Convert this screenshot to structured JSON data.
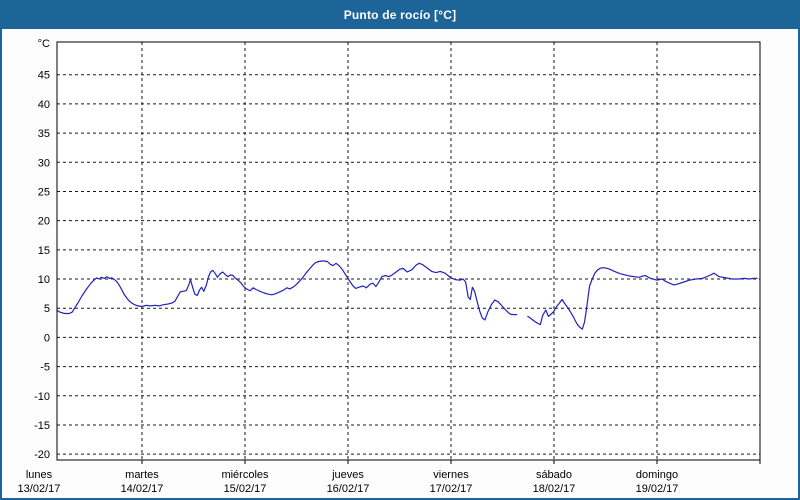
{
  "window": {
    "title": "Punto de rocío [°C]"
  },
  "colors": {
    "title_bar": "#1d6499",
    "window_border": "#1d6499",
    "background": "#fcfdfc",
    "plot_background": "#ffffff",
    "grid": "#1a1a1a",
    "axis_text": "#000000",
    "line": "#2222bb"
  },
  "chart_data": {
    "type": "line",
    "title": "Punto de rocío [°C]",
    "ylabel": "°C",
    "y_unit_label": "°C",
    "y_ticks": [
      45,
      40,
      35,
      30,
      25,
      20,
      15,
      10,
      5,
      0,
      -5,
      -10,
      -15,
      -20
    ],
    "y_range_drawn": [
      -21.0,
      50.6
    ],
    "x_range_hours": [
      4.2,
      168
    ],
    "grid": "dashed",
    "legend_position": "none",
    "x_ticks": [
      {
        "hour": 0,
        "day": "lunes",
        "date": "13/02/17"
      },
      {
        "hour": 24,
        "day": "martes",
        "date": "14/02/17"
      },
      {
        "hour": 48,
        "day": "miércoles",
        "date": "15/02/17"
      },
      {
        "hour": 72,
        "day": "jueves",
        "date": "16/02/17"
      },
      {
        "hour": 96,
        "day": "viernes",
        "date": "17/02/17"
      },
      {
        "hour": 120,
        "day": "sábado",
        "date": "18/02/17"
      },
      {
        "hour": 144,
        "day": "domingo",
        "date": "19/02/17"
      }
    ],
    "series": [
      {
        "name": "Punto de rocío",
        "unit": "°C",
        "color": "#2222bb",
        "x_unit": "hours_since_monday_00:00",
        "note": "gap in data Friday ~15:20-18:00",
        "segments": [
          [
            [
              4.2,
              4.6
            ],
            [
              5,
              4.3
            ],
            [
              6,
              4.1
            ],
            [
              7,
              4.1
            ],
            [
              7.7,
              4.3
            ],
            [
              8.3,
              5.0
            ],
            [
              9,
              5.8
            ],
            [
              10,
              7.1
            ],
            [
              11,
              8.2
            ],
            [
              12,
              9.2
            ],
            [
              12.8,
              9.8
            ],
            [
              13.4,
              10.2
            ],
            [
              14,
              10.0
            ],
            [
              14.6,
              10.3
            ],
            [
              15.2,
              10.1
            ],
            [
              15.8,
              10.4
            ],
            [
              16.4,
              10.1
            ],
            [
              17,
              10.2
            ],
            [
              17.6,
              9.9
            ],
            [
              18.2,
              9.5
            ],
            [
              18.8,
              8.8
            ],
            [
              19.4,
              8.0
            ],
            [
              20,
              7.2
            ],
            [
              20.6,
              6.6
            ],
            [
              21.2,
              6.1
            ],
            [
              22,
              5.7
            ],
            [
              23,
              5.4
            ],
            [
              24,
              5.3
            ],
            [
              25,
              5.5
            ],
            [
              26,
              5.4
            ],
            [
              27,
              5.5
            ],
            [
              28,
              5.4
            ],
            [
              29,
              5.6
            ],
            [
              30,
              5.7
            ],
            [
              31,
              5.9
            ],
            [
              31.7,
              6.2
            ],
            [
              32.3,
              7.0
            ],
            [
              32.9,
              7.8
            ],
            [
              33.6,
              7.9
            ],
            [
              34.3,
              8.0
            ],
            [
              34.9,
              9.0
            ],
            [
              35.3,
              9.9
            ],
            [
              35.8,
              8.6
            ],
            [
              36.3,
              7.4
            ],
            [
              36.9,
              7.2
            ],
            [
              37.4,
              8.1
            ],
            [
              37.9,
              8.6
            ],
            [
              38.4,
              7.9
            ],
            [
              39,
              9.0
            ],
            [
              39.5,
              10.4
            ],
            [
              40,
              11.2
            ],
            [
              40.5,
              11.5
            ],
            [
              41.1,
              10.9
            ],
            [
              41.6,
              10.3
            ],
            [
              42.2,
              10.9
            ],
            [
              42.8,
              11.2
            ],
            [
              43.4,
              10.8
            ],
            [
              44,
              10.4
            ],
            [
              44.6,
              10.7
            ],
            [
              45.2,
              10.6
            ],
            [
              45.8,
              10.1
            ],
            [
              46.4,
              9.8
            ],
            [
              47.1,
              9.3
            ],
            [
              47.6,
              8.8
            ],
            [
              48,
              8.5
            ],
            [
              48.6,
              8.2
            ],
            [
              49.2,
              8.0
            ],
            [
              49.9,
              8.5
            ],
            [
              50.6,
              8.2
            ],
            [
              51.5,
              7.9
            ],
            [
              52.5,
              7.6
            ],
            [
              53.4,
              7.4
            ],
            [
              54.3,
              7.3
            ],
            [
              55.2,
              7.5
            ],
            [
              56.1,
              7.8
            ],
            [
              57,
              8.1
            ],
            [
              57.8,
              8.5
            ],
            [
              58.4,
              8.3
            ],
            [
              59.2,
              8.6
            ],
            [
              60,
              9.1
            ],
            [
              60.8,
              9.7
            ],
            [
              61.5,
              10.3
            ],
            [
              62.2,
              11.0
            ],
            [
              63,
              11.7
            ],
            [
              63.7,
              12.3
            ],
            [
              64.4,
              12.8
            ],
            [
              65.2,
              13.0
            ],
            [
              66.2,
              13.1
            ],
            [
              67.2,
              13.0
            ],
            [
              67.9,
              12.5
            ],
            [
              68.5,
              12.3
            ],
            [
              69.2,
              12.7
            ],
            [
              69.9,
              12.3
            ],
            [
              70.6,
              11.7
            ],
            [
              71.3,
              10.9
            ],
            [
              72,
              10.1
            ],
            [
              72.6,
              9.4
            ],
            [
              73.2,
              8.8
            ],
            [
              73.8,
              8.4
            ],
            [
              74.6,
              8.6
            ],
            [
              75.5,
              8.8
            ],
            [
              76.3,
              8.5
            ],
            [
              77.1,
              9.1
            ],
            [
              77.8,
              9.3
            ],
            [
              78.5,
              8.7
            ],
            [
              79.2,
              9.5
            ],
            [
              79.9,
              10.4
            ],
            [
              80.7,
              10.6
            ],
            [
              81.5,
              10.4
            ],
            [
              82.3,
              10.7
            ],
            [
              83.2,
              11.2
            ],
            [
              84.1,
              11.7
            ],
            [
              84.9,
              11.8
            ],
            [
              85.8,
              11.2
            ],
            [
              86.9,
              11.6
            ],
            [
              87.9,
              12.4
            ],
            [
              88.6,
              12.7
            ],
            [
              89.3,
              12.5
            ],
            [
              90.4,
              11.9
            ],
            [
              91.5,
              11.3
            ],
            [
              92.5,
              11.1
            ],
            [
              93.5,
              11.3
            ],
            [
              94.6,
              11.0
            ],
            [
              95.3,
              10.6
            ],
            [
              96,
              10.2
            ],
            [
              97,
              9.9
            ],
            [
              98.1,
              9.8
            ],
            [
              98.8,
              10.0
            ],
            [
              99.4,
              9.5
            ],
            [
              100,
              6.9
            ],
            [
              100.5,
              6.5
            ],
            [
              101,
              8.6
            ],
            [
              101.5,
              7.9
            ],
            [
              102.1,
              6.1
            ],
            [
              102.7,
              4.5
            ],
            [
              103.3,
              3.3
            ],
            [
              103.9,
              3.0
            ],
            [
              104.6,
              4.4
            ],
            [
              105.4,
              5.6
            ],
            [
              106.2,
              6.4
            ],
            [
              107,
              6.1
            ],
            [
              108,
              5.3
            ],
            [
              109,
              4.5
            ],
            [
              109.8,
              4.0
            ],
            [
              110.6,
              3.9
            ],
            [
              111.3,
              3.9
            ]
          ],
          [
            [
              113.9,
              3.6
            ],
            [
              114.5,
              3.3
            ],
            [
              115.2,
              2.9
            ],
            [
              116,
              2.5
            ],
            [
              116.8,
              2.2
            ],
            [
              117.4,
              3.8
            ],
            [
              118.1,
              4.7
            ],
            [
              118.7,
              3.6
            ],
            [
              119.2,
              3.9
            ],
            [
              119.9,
              4.4
            ],
            [
              120.6,
              5.3
            ],
            [
              121.2,
              5.8
            ],
            [
              121.9,
              6.5
            ],
            [
              122.5,
              5.8
            ],
            [
              123.2,
              5.1
            ],
            [
              123.9,
              4.3
            ],
            [
              124.6,
              3.4
            ],
            [
              125.3,
              2.4
            ],
            [
              125.9,
              1.8
            ],
            [
              126.6,
              1.4
            ],
            [
              127.1,
              2.6
            ],
            [
              127.5,
              4.5
            ],
            [
              127.9,
              6.7
            ],
            [
              128.3,
              8.8
            ],
            [
              128.9,
              10.0
            ],
            [
              129.5,
              11.0
            ],
            [
              130.2,
              11.6
            ],
            [
              131,
              11.9
            ],
            [
              132,
              11.9
            ],
            [
              132.9,
              11.7
            ],
            [
              133.8,
              11.4
            ],
            [
              134.7,
              11.1
            ],
            [
              135.6,
              10.9
            ],
            [
              136.6,
              10.7
            ],
            [
              137.7,
              10.5
            ],
            [
              138.8,
              10.4
            ],
            [
              139.8,
              10.3
            ],
            [
              140.7,
              10.5
            ],
            [
              141.3,
              10.6
            ],
            [
              142.2,
              10.2
            ],
            [
              143.1,
              10.0
            ],
            [
              144,
              9.8
            ],
            [
              145.2,
              10.0
            ],
            [
              146,
              9.6
            ],
            [
              146.9,
              9.3
            ],
            [
              147.9,
              9.0
            ],
            [
              148.6,
              9.1
            ],
            [
              149.9,
              9.4
            ],
            [
              151.5,
              9.8
            ],
            [
              153.1,
              10.0
            ],
            [
              154.6,
              10.1
            ],
            [
              156.2,
              10.6
            ],
            [
              157.3,
              11.0
            ],
            [
              158.5,
              10.4
            ],
            [
              160.1,
              10.2
            ],
            [
              161.5,
              10.0
            ],
            [
              163.1,
              10.0
            ],
            [
              164.3,
              10.1
            ],
            [
              165.5,
              10.0
            ],
            [
              166.5,
              10.1
            ],
            [
              167.3,
              10.1
            ]
          ]
        ]
      }
    ]
  }
}
